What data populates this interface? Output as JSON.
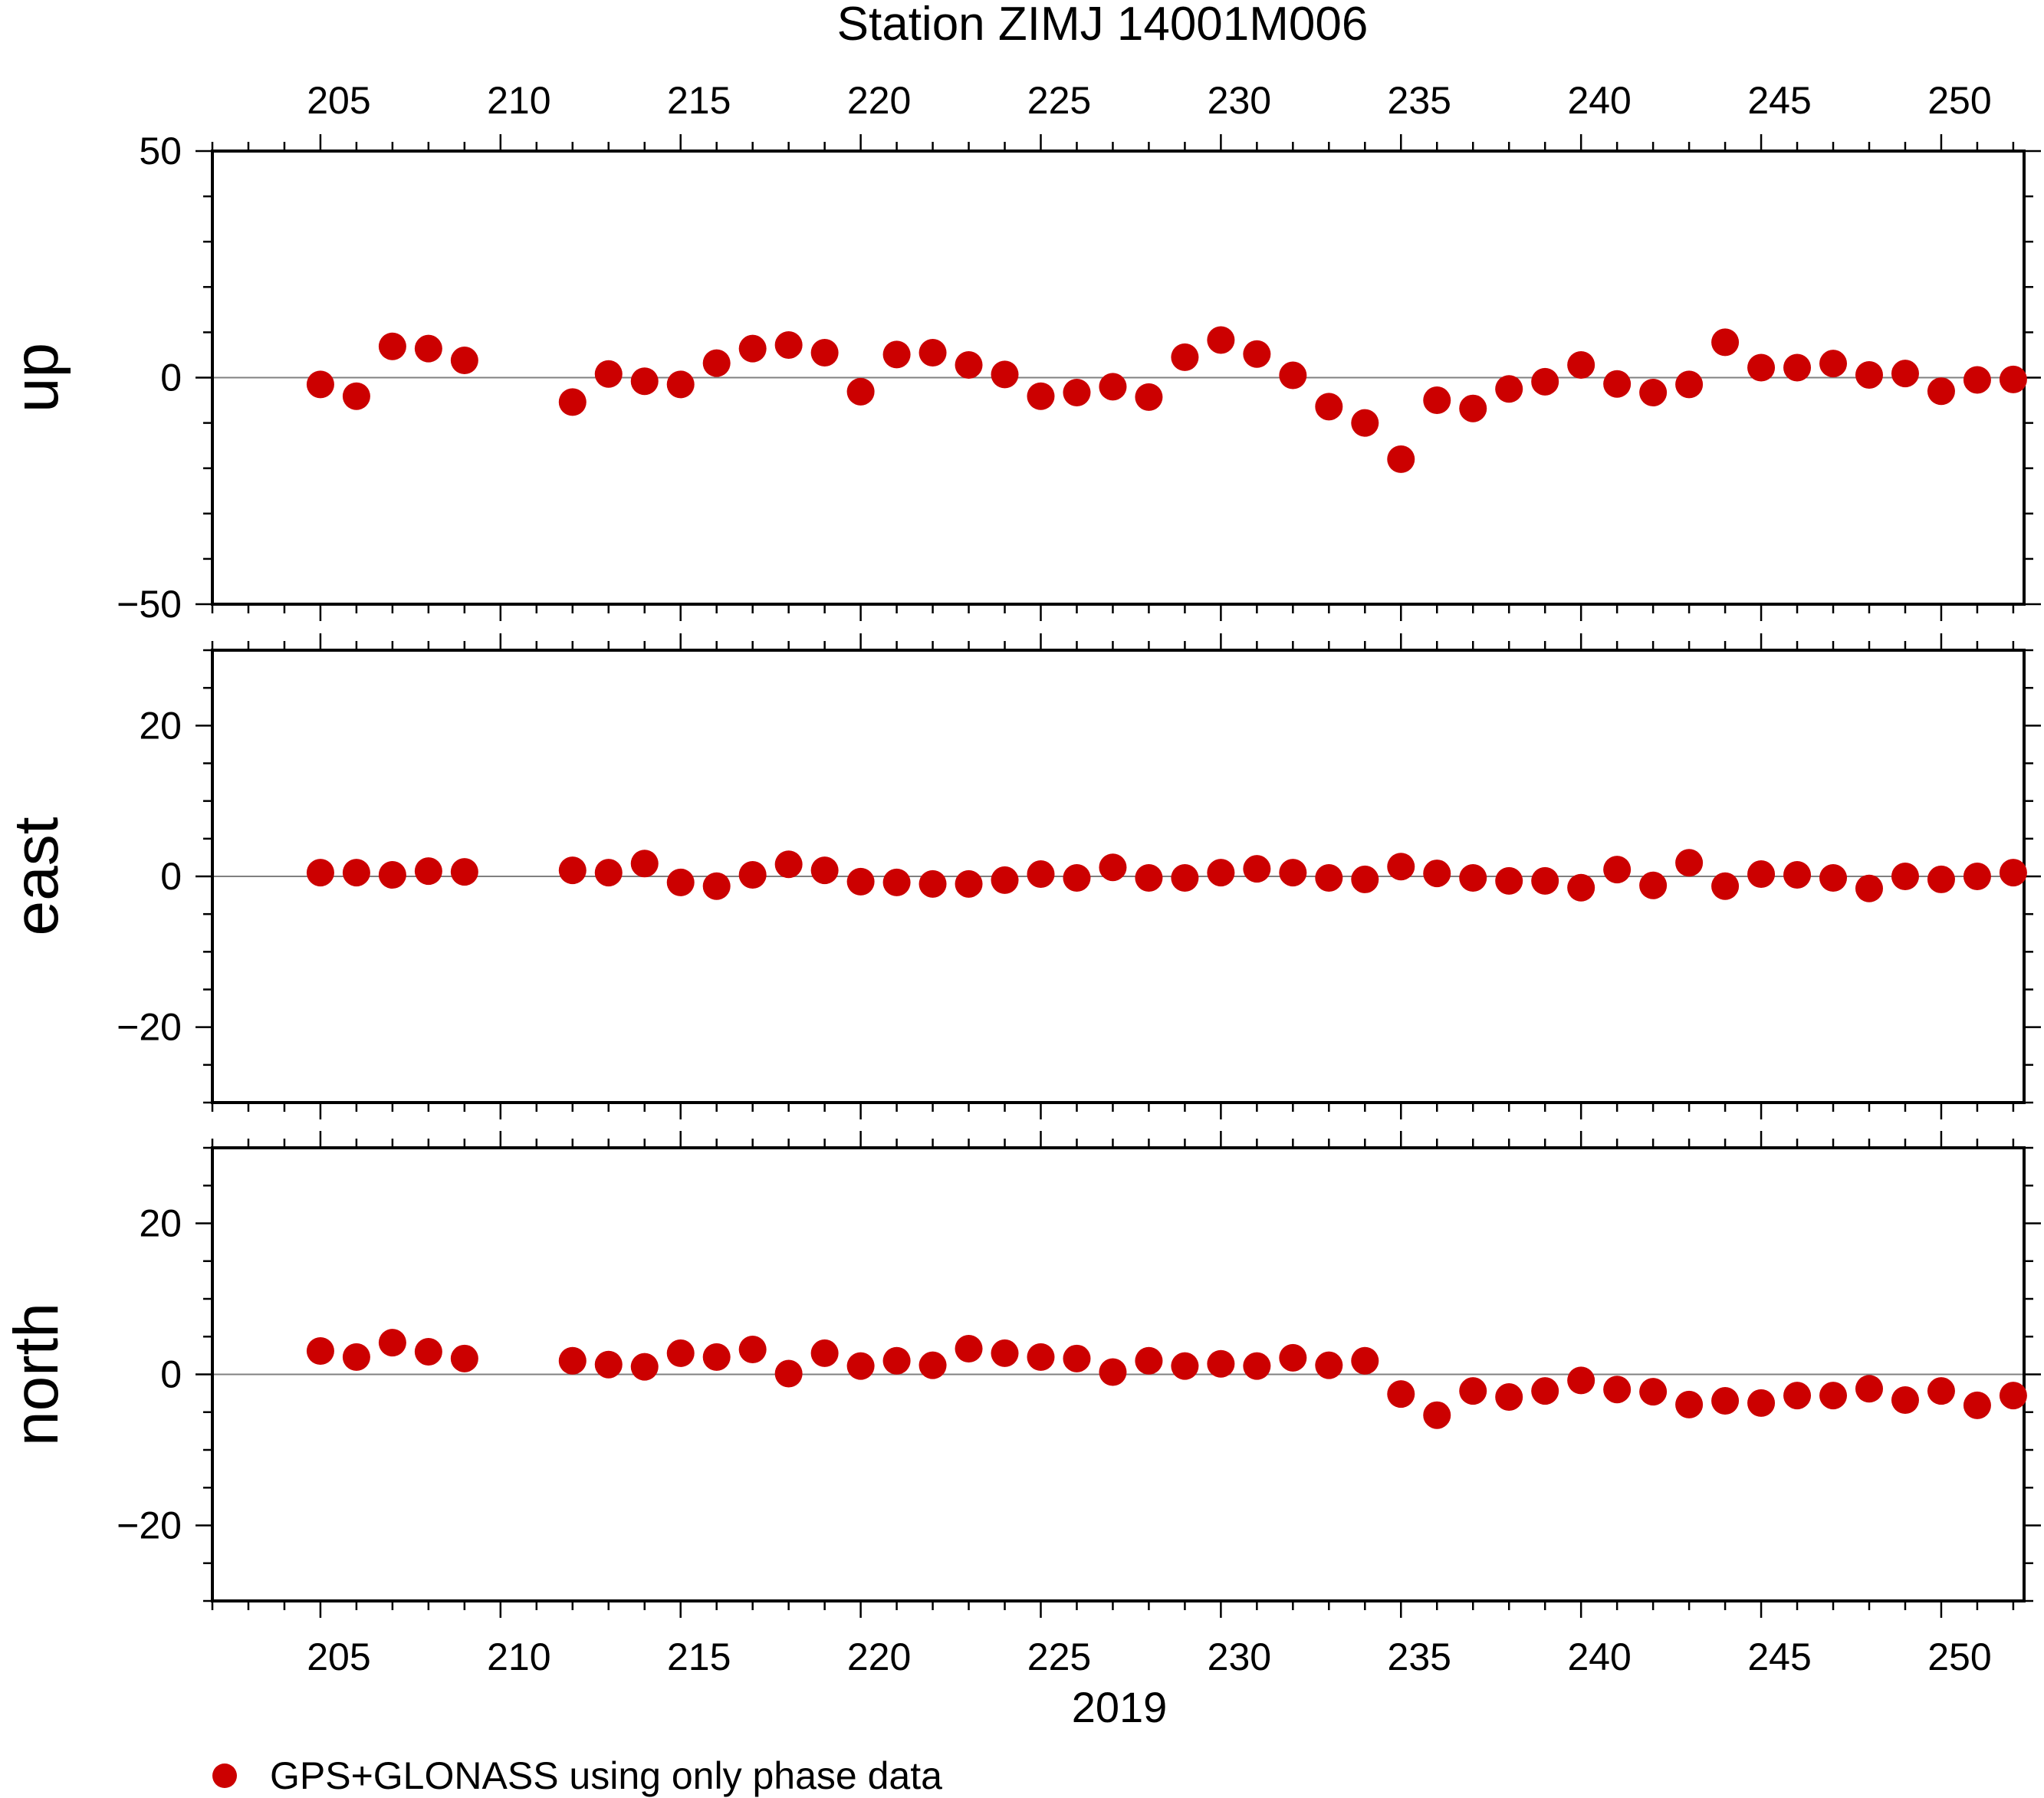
{
  "chart_data": {
    "type": "scatter",
    "title": "Station ZIMJ 14001M006",
    "xlabel": "2019",
    "xlim": [
      202,
      252.3
    ],
    "x_ticks": [
      205,
      210,
      215,
      220,
      225,
      230,
      235,
      240,
      245,
      250
    ],
    "x_tick_labels": [
      "205",
      "210",
      "215",
      "220",
      "225",
      "230",
      "235",
      "240",
      "245",
      "250"
    ],
    "grid": false,
    "legend": {
      "position": "bottom-left",
      "label": "GPS+GLONASS using only phase data"
    },
    "marker_color": "#cc0000",
    "zero_line_color": "#808080",
    "panels": [
      {
        "ylabel": "up",
        "ylim": [
          -50,
          50
        ],
        "y_ticks": [
          50,
          0,
          -50
        ],
        "y_tick_labels": [
          "50",
          "0",
          "−50"
        ],
        "points": [
          {
            "x": 205,
            "y": -1.5
          },
          {
            "x": 206,
            "y": -4.1
          },
          {
            "x": 207,
            "y": 6.9
          },
          {
            "x": 208,
            "y": 6.4
          },
          {
            "x": 209,
            "y": 3.8
          },
          {
            "x": 212,
            "y": -5.4
          },
          {
            "x": 213,
            "y": 0.8
          },
          {
            "x": 214,
            "y": -0.8
          },
          {
            "x": 215,
            "y": -1.5
          },
          {
            "x": 216,
            "y": 3.2
          },
          {
            "x": 217,
            "y": 6.4
          },
          {
            "x": 218,
            "y": 7.2
          },
          {
            "x": 219,
            "y": 5.5
          },
          {
            "x": 220,
            "y": -3.1
          },
          {
            "x": 221,
            "y": 5.1
          },
          {
            "x": 222,
            "y": 5.5
          },
          {
            "x": 223,
            "y": 2.8
          },
          {
            "x": 224,
            "y": 0.7
          },
          {
            "x": 225,
            "y": -4.1
          },
          {
            "x": 226,
            "y": -3.3
          },
          {
            "x": 227,
            "y": -2.0
          },
          {
            "x": 228,
            "y": -4.3
          },
          {
            "x": 229,
            "y": 4.5
          },
          {
            "x": 230,
            "y": 8.3
          },
          {
            "x": 231,
            "y": 5.2
          },
          {
            "x": 232,
            "y": 0.5
          },
          {
            "x": 233,
            "y": -6.4
          },
          {
            "x": 234,
            "y": -10.0
          },
          {
            "x": 235,
            "y": -18.0
          },
          {
            "x": 236,
            "y": -5.0
          },
          {
            "x": 237,
            "y": -6.8
          },
          {
            "x": 238,
            "y": -2.5
          },
          {
            "x": 239,
            "y": -0.9
          },
          {
            "x": 240,
            "y": 2.8
          },
          {
            "x": 241,
            "y": -1.4
          },
          {
            "x": 242,
            "y": -3.3
          },
          {
            "x": 243,
            "y": -1.5
          },
          {
            "x": 244,
            "y": 7.8
          },
          {
            "x": 245,
            "y": 2.2
          },
          {
            "x": 246,
            "y": 2.2
          },
          {
            "x": 247,
            "y": 3.1
          },
          {
            "x": 248,
            "y": 0.6
          },
          {
            "x": 249,
            "y": 0.9
          },
          {
            "x": 250,
            "y": -3.0
          },
          {
            "x": 251,
            "y": -0.5
          },
          {
            "x": 252,
            "y": -0.4
          }
        ]
      },
      {
        "ylabel": "east",
        "ylim": [
          -30,
          30
        ],
        "y_ticks": [
          20,
          0,
          -20
        ],
        "y_tick_labels": [
          "20",
          "0",
          "−20"
        ],
        "points": [
          {
            "x": 205,
            "y": 0.5
          },
          {
            "x": 206,
            "y": 0.5
          },
          {
            "x": 207,
            "y": 0.2
          },
          {
            "x": 208,
            "y": 0.7
          },
          {
            "x": 209,
            "y": 0.6
          },
          {
            "x": 212,
            "y": 0.8
          },
          {
            "x": 213,
            "y": 0.5
          },
          {
            "x": 214,
            "y": 1.7
          },
          {
            "x": 215,
            "y": -0.8
          },
          {
            "x": 216,
            "y": -1.3
          },
          {
            "x": 217,
            "y": 0.2
          },
          {
            "x": 218,
            "y": 1.6
          },
          {
            "x": 219,
            "y": 0.8
          },
          {
            "x": 220,
            "y": -0.7
          },
          {
            "x": 221,
            "y": -0.8
          },
          {
            "x": 222,
            "y": -1.0
          },
          {
            "x": 223,
            "y": -1.0
          },
          {
            "x": 224,
            "y": -0.5
          },
          {
            "x": 225,
            "y": 0.3
          },
          {
            "x": 226,
            "y": -0.2
          },
          {
            "x": 227,
            "y": 1.2
          },
          {
            "x": 228,
            "y": -0.2
          },
          {
            "x": 229,
            "y": -0.2
          },
          {
            "x": 230,
            "y": 0.5
          },
          {
            "x": 231,
            "y": 1.0
          },
          {
            "x": 232,
            "y": 0.5
          },
          {
            "x": 233,
            "y": -0.2
          },
          {
            "x": 234,
            "y": -0.4
          },
          {
            "x": 235,
            "y": 1.3
          },
          {
            "x": 236,
            "y": 0.4
          },
          {
            "x": 237,
            "y": -0.2
          },
          {
            "x": 238,
            "y": -0.6
          },
          {
            "x": 239,
            "y": -0.6
          },
          {
            "x": 240,
            "y": -1.5
          },
          {
            "x": 241,
            "y": 0.9
          },
          {
            "x": 242,
            "y": -1.2
          },
          {
            "x": 243,
            "y": 1.8
          },
          {
            "x": 244,
            "y": -1.3
          },
          {
            "x": 245,
            "y": 0.3
          },
          {
            "x": 246,
            "y": 0.2
          },
          {
            "x": 247,
            "y": -0.2
          },
          {
            "x": 248,
            "y": -1.6
          },
          {
            "x": 249,
            "y": 0.0
          },
          {
            "x": 250,
            "y": -0.4
          },
          {
            "x": 251,
            "y": 0.0
          },
          {
            "x": 252,
            "y": 0.5
          }
        ]
      },
      {
        "ylabel": "north",
        "ylim": [
          -30,
          30
        ],
        "y_ticks": [
          20,
          0,
          -20
        ],
        "y_tick_labels": [
          "20",
          "0",
          "−20"
        ],
        "points": [
          {
            "x": 205,
            "y": 3.1
          },
          {
            "x": 206,
            "y": 2.3
          },
          {
            "x": 207,
            "y": 4.2
          },
          {
            "x": 208,
            "y": 3.0
          },
          {
            "x": 209,
            "y": 2.1
          },
          {
            "x": 212,
            "y": 1.8
          },
          {
            "x": 213,
            "y": 1.3
          },
          {
            "x": 214,
            "y": 1.0
          },
          {
            "x": 215,
            "y": 2.8
          },
          {
            "x": 216,
            "y": 2.3
          },
          {
            "x": 217,
            "y": 3.3
          },
          {
            "x": 218,
            "y": 0.1
          },
          {
            "x": 219,
            "y": 2.8
          },
          {
            "x": 220,
            "y": 1.1
          },
          {
            "x": 221,
            "y": 1.8
          },
          {
            "x": 222,
            "y": 1.2
          },
          {
            "x": 223,
            "y": 3.4
          },
          {
            "x": 224,
            "y": 2.8
          },
          {
            "x": 225,
            "y": 2.3
          },
          {
            "x": 226,
            "y": 2.1
          },
          {
            "x": 227,
            "y": 0.3
          },
          {
            "x": 228,
            "y": 1.8
          },
          {
            "x": 229,
            "y": 1.1
          },
          {
            "x": 230,
            "y": 1.4
          },
          {
            "x": 231,
            "y": 1.1
          },
          {
            "x": 232,
            "y": 2.2
          },
          {
            "x": 233,
            "y": 1.2
          },
          {
            "x": 234,
            "y": 1.8
          },
          {
            "x": 235,
            "y": -2.6
          },
          {
            "x": 236,
            "y": -5.4
          },
          {
            "x": 237,
            "y": -2.2
          },
          {
            "x": 238,
            "y": -3.0
          },
          {
            "x": 239,
            "y": -2.2
          },
          {
            "x": 240,
            "y": -0.8
          },
          {
            "x": 241,
            "y": -2.0
          },
          {
            "x": 242,
            "y": -2.3
          },
          {
            "x": 243,
            "y": -4.0
          },
          {
            "x": 244,
            "y": -3.5
          },
          {
            "x": 245,
            "y": -3.8
          },
          {
            "x": 246,
            "y": -2.8
          },
          {
            "x": 247,
            "y": -2.8
          },
          {
            "x": 248,
            "y": -1.9
          },
          {
            "x": 249,
            "y": -3.4
          },
          {
            "x": 250,
            "y": -2.2
          },
          {
            "x": 251,
            "y": -4.1
          },
          {
            "x": 252,
            "y": -2.8
          }
        ]
      }
    ]
  }
}
